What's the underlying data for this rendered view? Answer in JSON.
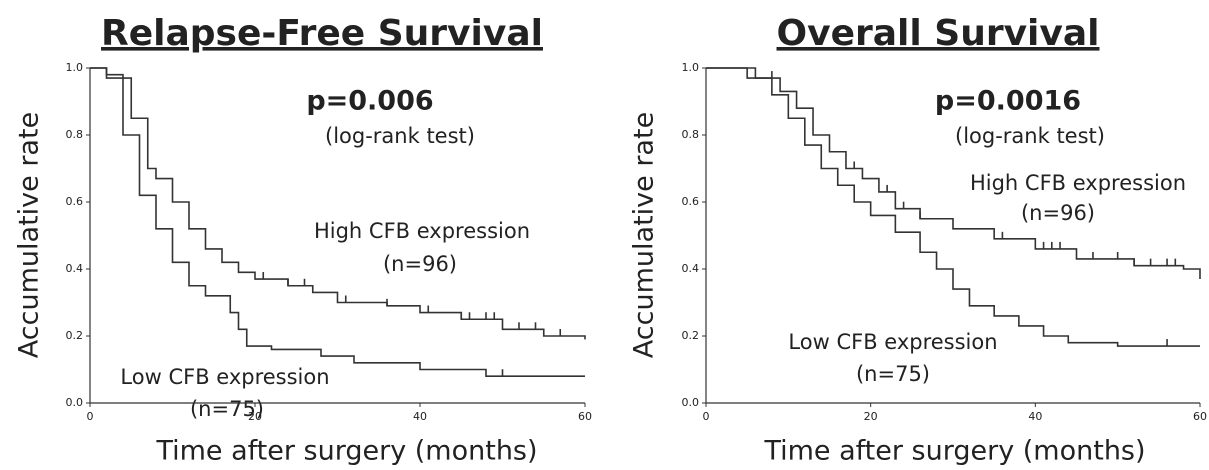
{
  "chart_data": [
    {
      "type": "step",
      "title": "Relapse-Free Survival",
      "xlabel": "Time after surgery (months)",
      "ylabel": "Accumulative rate",
      "p_value": "p=0.006",
      "test": "(log-rank test)",
      "xlim": [
        0,
        60
      ],
      "xticks": [
        0,
        20,
        40,
        60
      ],
      "ylim": [
        0,
        1
      ],
      "yticks": [
        {
          "value": 0,
          "label": "0.0"
        },
        0.2,
        0.4,
        0.6,
        0.8,
        {
          "value": 1,
          "label": "1.0"
        }
      ],
      "series": [
        {
          "name": "High CFB expression",
          "n": "(n=96)",
          "color": "#333333",
          "x": [
            0,
            2,
            5,
            7,
            8,
            10,
            12,
            14,
            16,
            18,
            20,
            24,
            27,
            30,
            36,
            40,
            45,
            50,
            55,
            60
          ],
          "values": [
            1.0,
            0.97,
            0.85,
            0.7,
            0.67,
            0.6,
            0.52,
            0.46,
            0.42,
            0.39,
            0.37,
            0.35,
            0.33,
            0.3,
            0.29,
            0.27,
            0.25,
            0.22,
            0.2,
            0.19
          ],
          "censored": [
            21,
            24,
            26,
            31,
            36,
            41,
            45,
            46,
            48,
            49,
            52,
            54,
            57
          ]
        },
        {
          "name": "Low CFB expression",
          "n": "(n=75)",
          "color": "#333333",
          "x": [
            0,
            2,
            4,
            6,
            8,
            10,
            12,
            14,
            17,
            18,
            19,
            22,
            28,
            32,
            40,
            48,
            60
          ],
          "values": [
            1.0,
            0.98,
            0.8,
            0.62,
            0.52,
            0.42,
            0.35,
            0.32,
            0.27,
            0.22,
            0.17,
            0.16,
            0.14,
            0.12,
            0.1,
            0.08,
            0.08
          ],
          "censored": [
            50
          ]
        }
      ]
    },
    {
      "type": "step",
      "title": "Overall Survival",
      "xlabel": "Time after surgery (months)",
      "ylabel": "Accumulative rate",
      "p_value": "p=0.0016",
      "test": "(log-rank test)",
      "xlim": [
        0,
        60
      ],
      "xticks": [
        0,
        20,
        40,
        60
      ],
      "ylim": [
        0,
        1
      ],
      "yticks": [
        {
          "value": 0,
          "label": "0.0"
        },
        0.2,
        0.4,
        0.6,
        0.8,
        {
          "value": 1,
          "label": "1.0"
        }
      ],
      "series": [
        {
          "name": "High CFB expression",
          "n": "(n=96)",
          "color": "#333333",
          "x": [
            0,
            3,
            6,
            9,
            11,
            13,
            15,
            17,
            19,
            21,
            23,
            26,
            30,
            35,
            40,
            45,
            52,
            58,
            60
          ],
          "values": [
            1.0,
            1.0,
            0.97,
            0.93,
            0.88,
            0.8,
            0.75,
            0.7,
            0.67,
            0.63,
            0.58,
            0.55,
            0.52,
            0.49,
            0.46,
            0.43,
            0.41,
            0.4,
            0.37
          ],
          "censored": [
            8,
            18,
            22,
            24,
            26,
            36,
            41,
            42,
            43,
            47,
            50,
            52,
            54,
            56,
            57
          ]
        },
        {
          "name": "Low CFB expression",
          "n": "(n=75)",
          "color": "#333333",
          "x": [
            0,
            3,
            5,
            8,
            10,
            12,
            14,
            16,
            18,
            20,
            23,
            26,
            28,
            30,
            32,
            35,
            38,
            41,
            44,
            50,
            60
          ],
          "values": [
            1.0,
            1.0,
            0.97,
            0.92,
            0.85,
            0.77,
            0.7,
            0.65,
            0.6,
            0.56,
            0.51,
            0.45,
            0.4,
            0.34,
            0.29,
            0.26,
            0.23,
            0.2,
            0.18,
            0.17,
            0.17
          ],
          "censored": [
            56
          ]
        }
      ]
    }
  ]
}
